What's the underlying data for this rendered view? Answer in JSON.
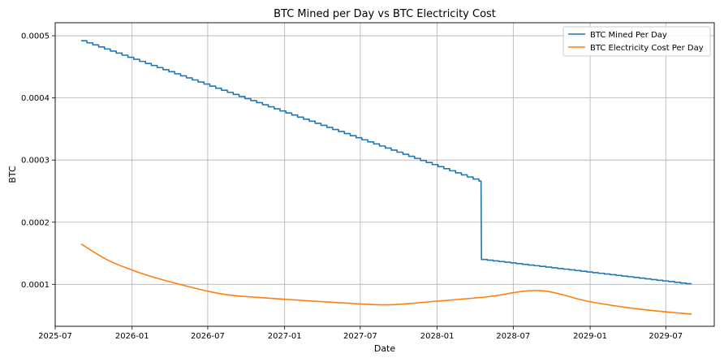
{
  "chart_data": {
    "type": "line",
    "title": "BTC Mined per Day vs BTC Electricity Cost",
    "xlabel": "Date",
    "ylabel": "BTC",
    "grid": true,
    "legend_position": "top-right",
    "xlim": [
      "2025-07-01",
      "2029-10-25"
    ],
    "ylim": [
      3.25e-05,
      0.000521
    ],
    "x_ticks": [
      {
        "date": "2025-07-01",
        "label": "2025-07"
      },
      {
        "date": "2026-01-01",
        "label": "2026-01"
      },
      {
        "date": "2026-07-01",
        "label": "2026-07"
      },
      {
        "date": "2027-01-01",
        "label": "2027-01"
      },
      {
        "date": "2027-07-01",
        "label": "2027-07"
      },
      {
        "date": "2028-01-01",
        "label": "2028-01"
      },
      {
        "date": "2028-07-01",
        "label": "2028-07"
      },
      {
        "date": "2029-01-01",
        "label": "2029-01"
      },
      {
        "date": "2029-07-01",
        "label": "2029-07"
      }
    ],
    "y_ticks": [
      {
        "value": 0.0001,
        "label": "0.0001"
      },
      {
        "value": 0.0002,
        "label": "0.0002"
      },
      {
        "value": 0.0003,
        "label": "0.0003"
      },
      {
        "value": 0.0004,
        "label": "0.0004"
      },
      {
        "value": 0.0005,
        "label": "0.0005"
      }
    ],
    "series": [
      {
        "name": "BTC Mined Per Day",
        "color": "#1f77b4",
        "style": "step",
        "points": [
          {
            "date": "2025-09-01",
            "value": 0.000492
          },
          {
            "date": "2028-04-15",
            "value": 0.000265
          },
          {
            "date": "2028-04-16",
            "value": 0.00014
          },
          {
            "date": "2029-09-01",
            "value": 0.0001
          }
        ],
        "step_days": 14
      },
      {
        "name": "BTC Electricity Cost Per Day",
        "color": "#ff7f0e",
        "style": "line",
        "points": [
          {
            "date": "2025-09-01",
            "value": 0.000165
          },
          {
            "date": "2025-11-01",
            "value": 0.00014
          },
          {
            "date": "2026-01-01",
            "value": 0.000123
          },
          {
            "date": "2026-03-01",
            "value": 0.00011
          },
          {
            "date": "2026-05-01",
            "value": 9.9e-05
          },
          {
            "date": "2026-07-01",
            "value": 8.9e-05
          },
          {
            "date": "2026-09-01",
            "value": 8.2e-05
          },
          {
            "date": "2027-01-01",
            "value": 7.6e-05
          },
          {
            "date": "2027-05-01",
            "value": 7.1e-05
          },
          {
            "date": "2027-09-01",
            "value": 6.7e-05
          },
          {
            "date": "2028-01-01",
            "value": 7.3e-05
          },
          {
            "date": "2028-05-01",
            "value": 8e-05
          },
          {
            "date": "2028-09-01",
            "value": 9e-05
          },
          {
            "date": "2029-01-01",
            "value": 7.2e-05
          },
          {
            "date": "2029-05-01",
            "value": 6e-05
          },
          {
            "date": "2029-09-01",
            "value": 5.2e-05
          }
        ]
      }
    ]
  }
}
